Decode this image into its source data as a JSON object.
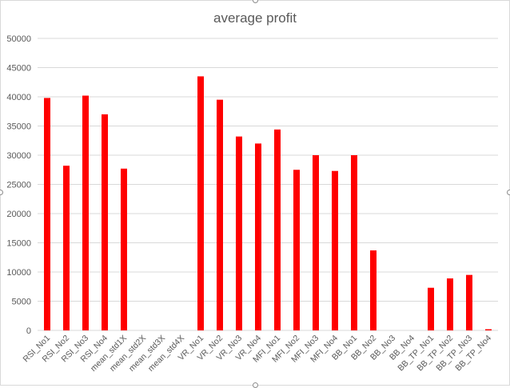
{
  "chart_data": {
    "type": "bar",
    "title": "average profit",
    "xlabel": "",
    "ylabel": "",
    "ylim": [
      0,
      50000
    ],
    "yticks": [
      0,
      5000,
      10000,
      15000,
      20000,
      25000,
      30000,
      35000,
      40000,
      45000,
      50000
    ],
    "grid": true,
    "legend": "none",
    "bar_color": "#ff0000",
    "gridline_color": "#d9d9d9",
    "categories": [
      "RSI_No1",
      "RSI_No2",
      "RSI_No3",
      "RSI_No4",
      "mean_std1X",
      "mean_std2X",
      "mean_std3X",
      "mean_std4X",
      "VR_No1",
      "VR_No2",
      "VR_No3",
      "VR_No4",
      "MFI_No1",
      "MFI_No2",
      "MFI_No3",
      "MFI_No4",
      "BB_No1",
      "BB_No2",
      "BB_No3",
      "BB_No4",
      "BB_TP_No1",
      "BB_TP_No2",
      "BB_TP_No3",
      "BB_TP_No4"
    ],
    "values": [
      39800,
      28200,
      40200,
      37000,
      27700,
      0,
      0,
      0,
      43500,
      39500,
      33200,
      32000,
      34400,
      27500,
      30000,
      27300,
      30000,
      13700,
      0,
      0,
      7300,
      8900,
      9500,
      200
    ]
  }
}
